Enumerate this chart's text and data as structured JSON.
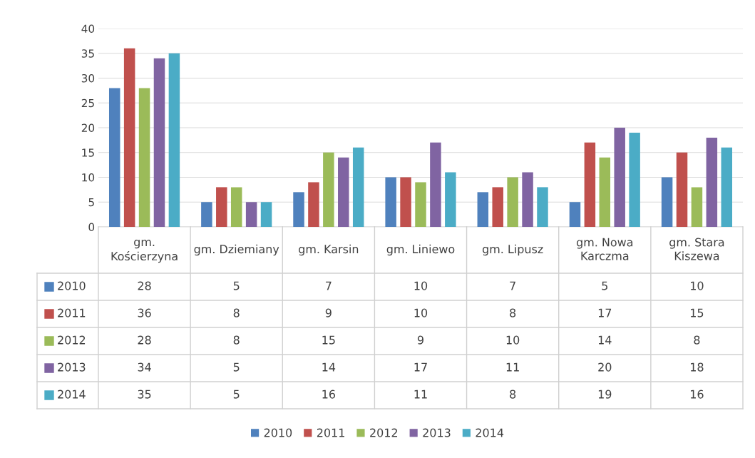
{
  "chart_data": {
    "type": "bar",
    "categories": [
      "gm. Kościerzyna",
      "gm. Dziemiany",
      "gm. Karsin",
      "gm. Liniewo",
      "gm. Lipusz",
      "gm. Nowa Karczma",
      "gm. Stara Kiszewa"
    ],
    "series": [
      {
        "name": "2010",
        "color": "#4f81bd",
        "values": [
          28,
          5,
          7,
          10,
          7,
          5,
          10
        ]
      },
      {
        "name": "2011",
        "color": "#c0504d",
        "values": [
          36,
          8,
          9,
          10,
          8,
          17,
          15
        ]
      },
      {
        "name": "2012",
        "color": "#9bbb59",
        "values": [
          28,
          8,
          15,
          9,
          10,
          14,
          8
        ]
      },
      {
        "name": "2013",
        "color": "#8064a2",
        "values": [
          34,
          5,
          14,
          17,
          11,
          20,
          18
        ]
      },
      {
        "name": "2014",
        "color": "#4bacc6",
        "values": [
          35,
          5,
          16,
          11,
          8,
          19,
          16
        ]
      }
    ],
    "ylim": [
      0,
      40
    ],
    "yticks": [
      0,
      5,
      10,
      15,
      20,
      25,
      30,
      35,
      40
    ],
    "grid": "y",
    "legend": "bottom",
    "data_labels": true
  }
}
